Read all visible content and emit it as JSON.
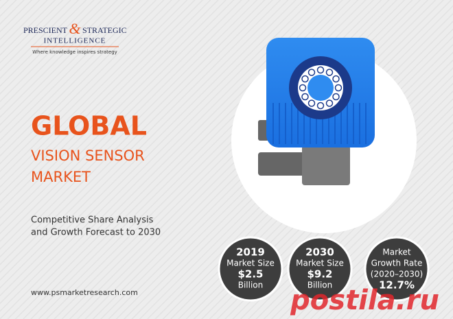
{
  "logo": {
    "name_left": "PRESCIENT",
    "ampersand": "&",
    "name_right": "STRATEGIC",
    "name_bottom": "INTELLIGENCE",
    "tagline": "Where knowledge inspires strategy"
  },
  "headline": {
    "line1": "GLOBAL",
    "line2": "VISION SENSOR",
    "line3": "MARKET"
  },
  "subtitle": {
    "line1": "Competitive Share Analysis",
    "line2": "and Growth Forecast to 2030"
  },
  "stats": [
    {
      "lines": [
        "2019",
        "Market Size",
        "$2.5",
        "Billion"
      ]
    },
    {
      "lines": [
        "2030",
        "Market Size",
        "$9.2",
        "Billion"
      ]
    },
    {
      "lines": [
        "Market",
        "Growth Rate",
        "(2020–2030)",
        "12.7%"
      ]
    }
  ],
  "website": "www.psmarketresearch.com",
  "watermark": "postila.ru"
}
